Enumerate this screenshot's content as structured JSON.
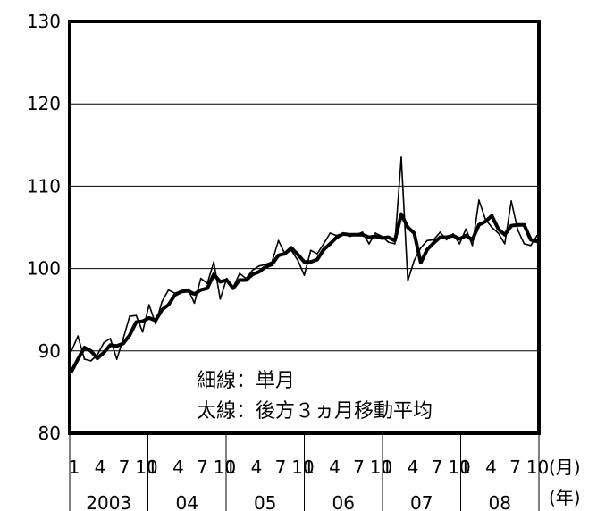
{
  "chart_data": {
    "type": "line",
    "title": "",
    "xlabel": "",
    "ylabel": "",
    "ylim": [
      80,
      130
    ],
    "yticks": [
      80,
      90,
      100,
      110,
      120,
      130
    ],
    "ytick_labels": [
      "80",
      "90",
      "100",
      "110",
      "120",
      "130"
    ],
    "grid": true,
    "x_month_ticks": [
      "1",
      "4",
      "7",
      "10"
    ],
    "x_month_unit": "(月)",
    "x_year_unit": "(年)",
    "years": [
      "2003",
      "04",
      "05",
      "06",
      "07",
      "08"
    ],
    "legend": [
      "細線：単月",
      "太線：後方３ヵ月移動平均"
    ],
    "series": [
      {
        "name": "単月",
        "style": "thin",
        "values": [
          90.0,
          91.8,
          89.0,
          88.8,
          89.5,
          91.0,
          91.5,
          89.0,
          91.5,
          94.2,
          94.3,
          92.3,
          95.6,
          93.3,
          96.0,
          97.4,
          97.0,
          97.3,
          97.5,
          95.8,
          98.8,
          98.2,
          100.8,
          96.3,
          98.8,
          97.7,
          99.4,
          98.8,
          99.8,
          100.3,
          100.5,
          100.8,
          103.4,
          101.8,
          102.2,
          101.0,
          99.2,
          102.2,
          101.8,
          103.0,
          104.3,
          104.0,
          104.3,
          103.9,
          104.1,
          104.4,
          103.0,
          104.3,
          103.9,
          103.2,
          103.0,
          113.5,
          98.5,
          101.0,
          102.5,
          103.4,
          103.5,
          104.4,
          103.5,
          104.2,
          103.0,
          104.8,
          102.8,
          108.3,
          106.0,
          105.0,
          104.3,
          103.0,
          108.2,
          104.7,
          103.0,
          102.8,
          104.0
        ]
      },
      {
        "name": "後方３ヵ月移動平均",
        "style": "thick",
        "values": [
          87.5,
          89.0,
          90.4,
          90.0,
          89.1,
          89.8,
          90.7,
          90.6,
          90.9,
          91.9,
          93.5,
          93.6,
          94.0,
          93.7,
          95.0,
          95.6,
          96.8,
          97.2,
          97.3,
          96.9,
          97.4,
          97.6,
          99.3,
          98.4,
          98.6,
          97.6,
          98.6,
          98.6,
          99.3,
          99.6,
          100.2,
          100.5,
          101.6,
          101.8,
          102.5,
          101.7,
          100.8,
          100.8,
          101.1,
          102.3,
          103.0,
          103.8,
          104.2,
          104.1,
          104.1,
          104.1,
          103.8,
          103.9,
          103.7,
          103.8,
          103.4,
          106.6,
          105.0,
          104.3,
          100.7,
          102.3,
          103.1,
          103.8,
          103.8,
          104.0,
          103.6,
          104.0,
          103.5,
          105.3,
          105.7,
          106.4,
          104.8,
          104.1,
          105.2,
          105.3,
          105.3,
          103.5,
          103.3
        ]
      }
    ]
  }
}
